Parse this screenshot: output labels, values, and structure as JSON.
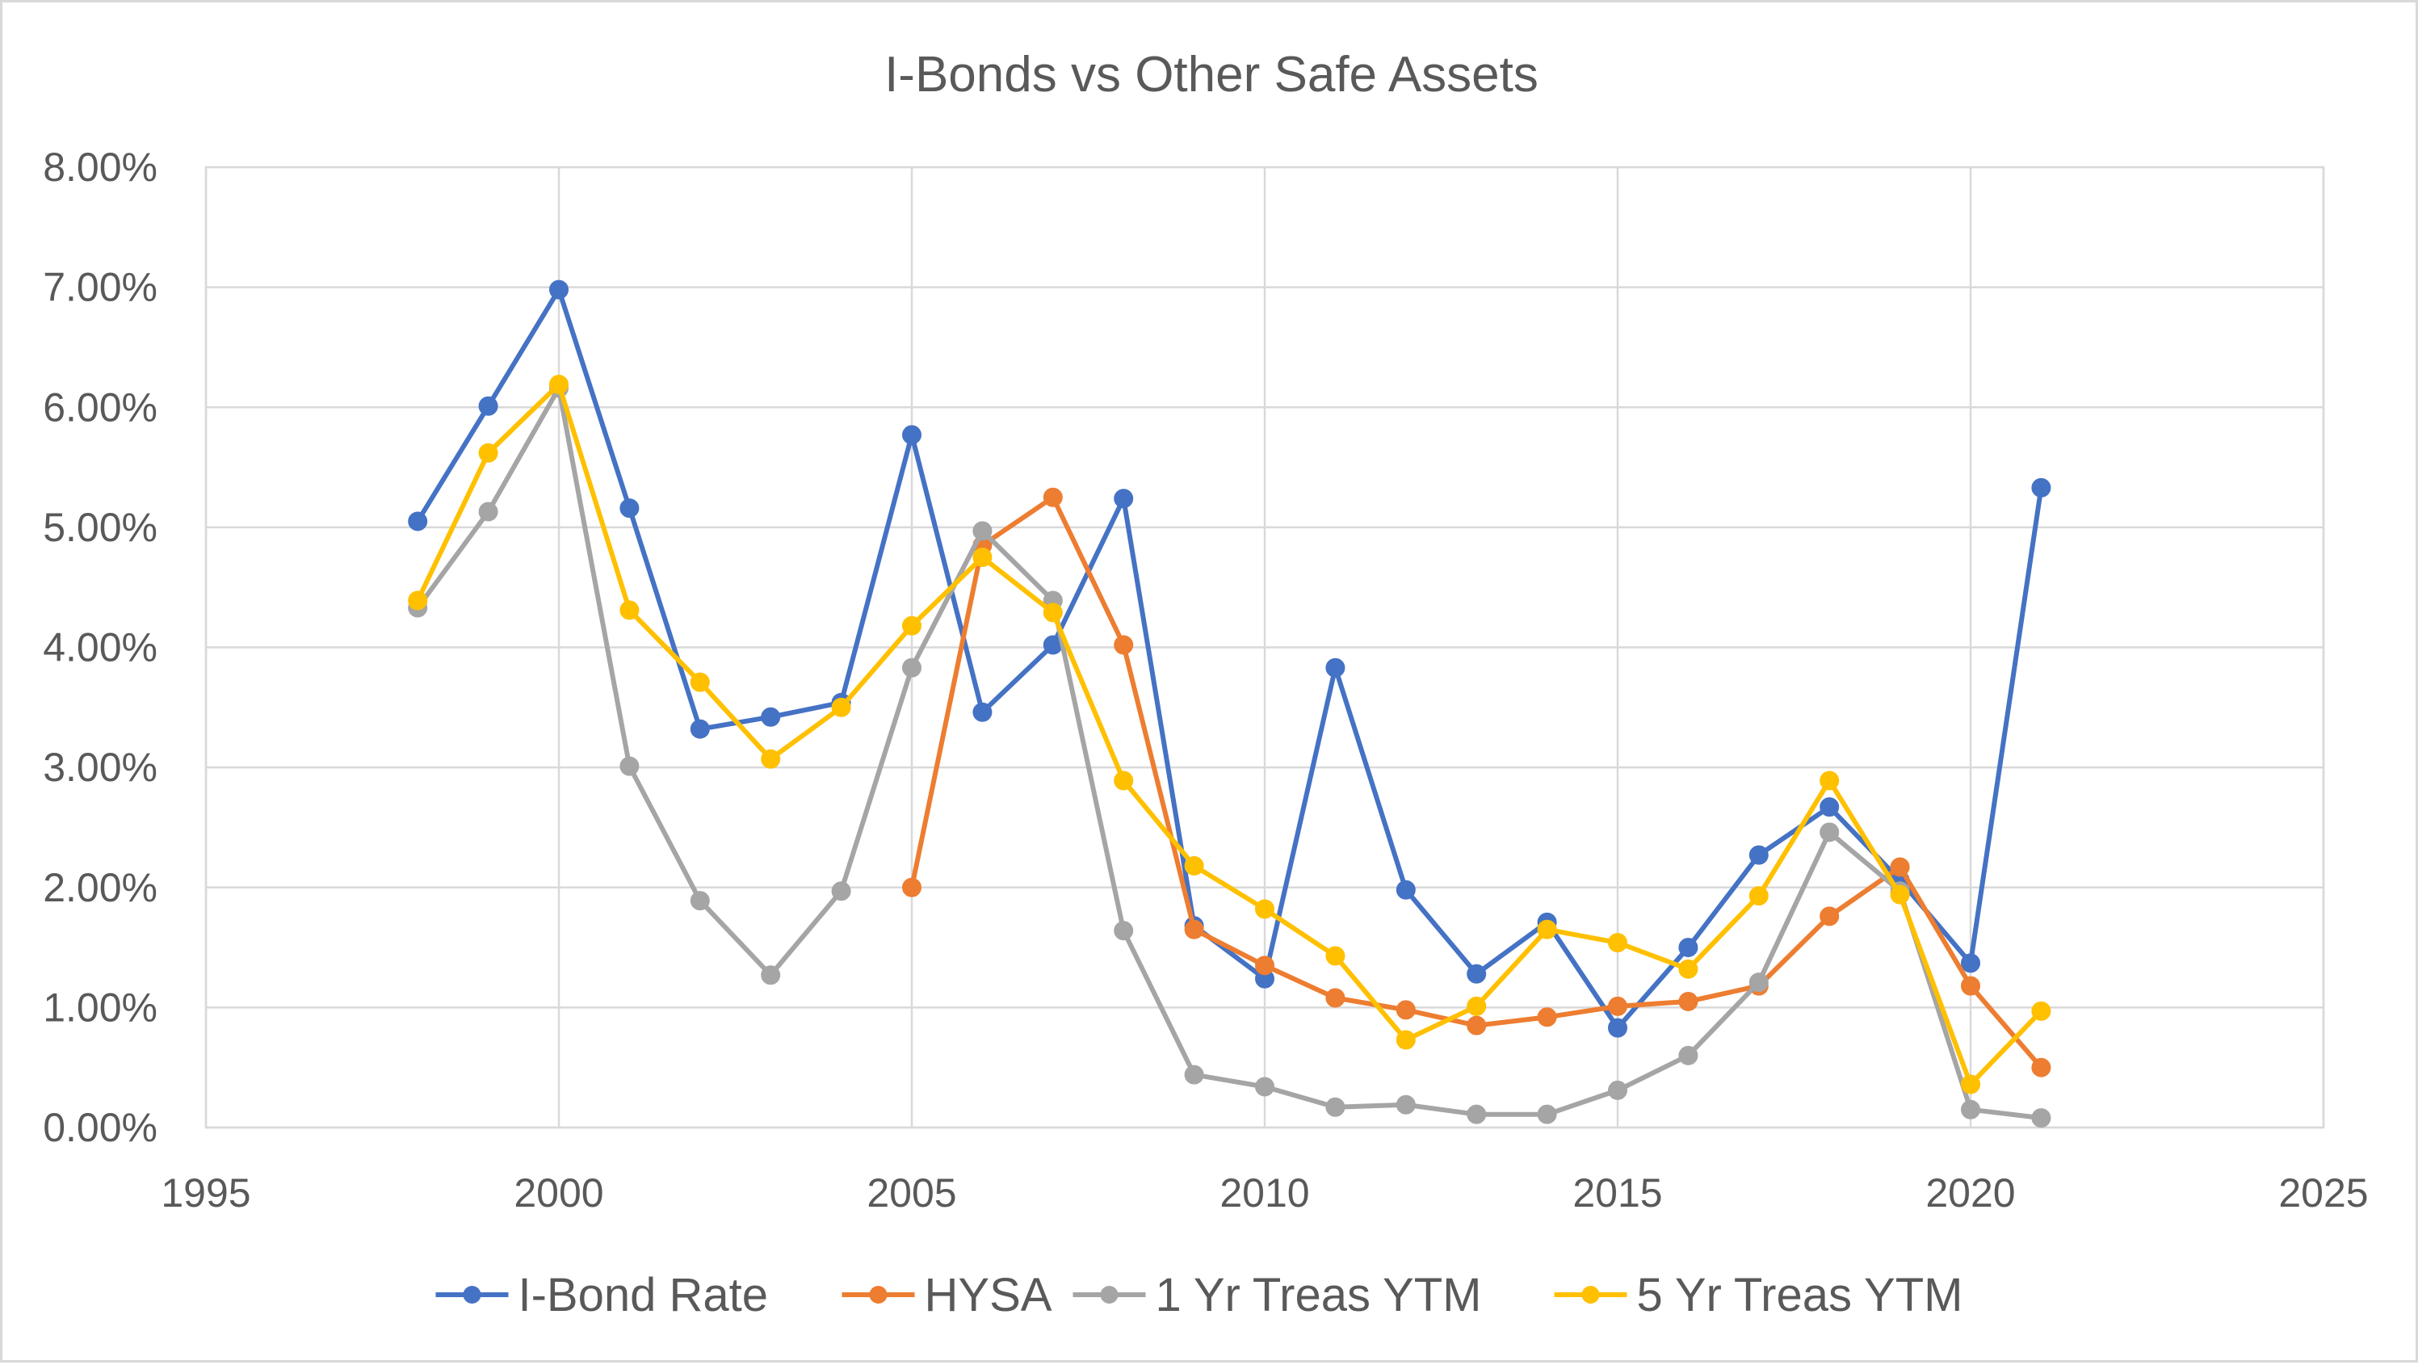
{
  "chart_data": {
    "type": "scatter",
    "title": "I-Bonds vs Other Safe Assets",
    "xlabel": "",
    "ylabel": "",
    "xlim": [
      1995,
      2025
    ],
    "ylim": [
      0,
      0.08
    ],
    "x_ticks": [
      1995,
      2000,
      2005,
      2010,
      2015,
      2020,
      2025
    ],
    "x_tick_labels": [
      "1995",
      "2000",
      "2005",
      "2010",
      "2015",
      "2020",
      "2025"
    ],
    "y_ticks": [
      0,
      0.01,
      0.02,
      0.03,
      0.04,
      0.05,
      0.06,
      0.07,
      0.08
    ],
    "y_tick_labels": [
      "0.00%",
      "1.00%",
      "2.00%",
      "3.00%",
      "4.00%",
      "5.00%",
      "6.00%",
      "7.00%",
      "8.00%"
    ],
    "grid": "major, both axes",
    "markers": "circle",
    "legend_position": "bottom",
    "series": [
      {
        "name": "I-Bond Rate",
        "color": "#4472C4",
        "points": [
          [
            1998,
            0.0505
          ],
          [
            1999,
            0.0601
          ],
          [
            2000,
            0.0698
          ],
          [
            2001,
            0.0516
          ],
          [
            2002,
            0.0332
          ],
          [
            2003,
            0.0342
          ],
          [
            2004,
            0.0354
          ],
          [
            2005,
            0.0577
          ],
          [
            2006,
            0.0346
          ],
          [
            2007,
            0.0402
          ],
          [
            2008,
            0.0524
          ],
          [
            2009,
            0.0168
          ],
          [
            2010,
            0.0124
          ],
          [
            2011,
            0.0383
          ],
          [
            2012,
            0.0198
          ],
          [
            2013,
            0.0128
          ],
          [
            2014,
            0.0171
          ],
          [
            2015,
            0.0083
          ],
          [
            2016,
            0.015
          ],
          [
            2017,
            0.0227
          ],
          [
            2018,
            0.0267
          ],
          [
            2019,
            0.0206
          ],
          [
            2020,
            0.0137
          ],
          [
            2021,
            0.0533
          ]
        ]
      },
      {
        "name": "HYSA",
        "color": "#ED7D31",
        "points": [
          [
            2005,
            0.02
          ],
          [
            2006,
            0.0485
          ],
          [
            2007,
            0.0525
          ],
          [
            2008,
            0.0402
          ],
          [
            2009,
            0.0165
          ],
          [
            2010,
            0.0135
          ],
          [
            2011,
            0.0108
          ],
          [
            2012,
            0.0098
          ],
          [
            2013,
            0.0085
          ],
          [
            2014,
            0.0092
          ],
          [
            2015,
            0.0101
          ],
          [
            2016,
            0.0105
          ],
          [
            2017,
            0.0118
          ],
          [
            2018,
            0.0176
          ],
          [
            2019,
            0.0217
          ],
          [
            2020,
            0.0118
          ],
          [
            2021,
            0.005
          ]
        ]
      },
      {
        "name": "1 Yr Treas YTM",
        "color": "#A5A5A5",
        "points": [
          [
            1998,
            0.0433
          ],
          [
            1999,
            0.0513
          ],
          [
            2000,
            0.0616
          ],
          [
            2001,
            0.0301
          ],
          [
            2002,
            0.0189
          ],
          [
            2003,
            0.0127
          ],
          [
            2004,
            0.0197
          ],
          [
            2005,
            0.0383
          ],
          [
            2006,
            0.0497
          ],
          [
            2007,
            0.0439
          ],
          [
            2008,
            0.0164
          ],
          [
            2009,
            0.0044
          ],
          [
            2010,
            0.0034
          ],
          [
            2011,
            0.0017
          ],
          [
            2012,
            0.0019
          ],
          [
            2013,
            0.0011
          ],
          [
            2014,
            0.0011
          ],
          [
            2015,
            0.0031
          ],
          [
            2016,
            0.006
          ],
          [
            2017,
            0.0121
          ],
          [
            2018,
            0.0246
          ],
          [
            2019,
            0.0197
          ],
          [
            2020,
            0.0015
          ],
          [
            2021,
            0.0008
          ]
        ]
      },
      {
        "name": "5 Yr Treas YTM",
        "color": "#FFC000",
        "points": [
          [
            1998,
            0.0439
          ],
          [
            1999,
            0.0562
          ],
          [
            2000,
            0.0619
          ],
          [
            2001,
            0.0431
          ],
          [
            2002,
            0.0371
          ],
          [
            2003,
            0.0307
          ],
          [
            2004,
            0.035
          ],
          [
            2005,
            0.0418
          ],
          [
            2006,
            0.0475
          ],
          [
            2007,
            0.0429
          ],
          [
            2008,
            0.0289
          ],
          [
            2009,
            0.0218
          ],
          [
            2010,
            0.0182
          ],
          [
            2011,
            0.0143
          ],
          [
            2012,
            0.0073
          ],
          [
            2013,
            0.0101
          ],
          [
            2014,
            0.0165
          ],
          [
            2015,
            0.0154
          ],
          [
            2016,
            0.0132
          ],
          [
            2017,
            0.0193
          ],
          [
            2018,
            0.0289
          ],
          [
            2019,
            0.0194
          ],
          [
            2020,
            0.0036
          ],
          [
            2021,
            0.0097
          ]
        ]
      }
    ]
  }
}
